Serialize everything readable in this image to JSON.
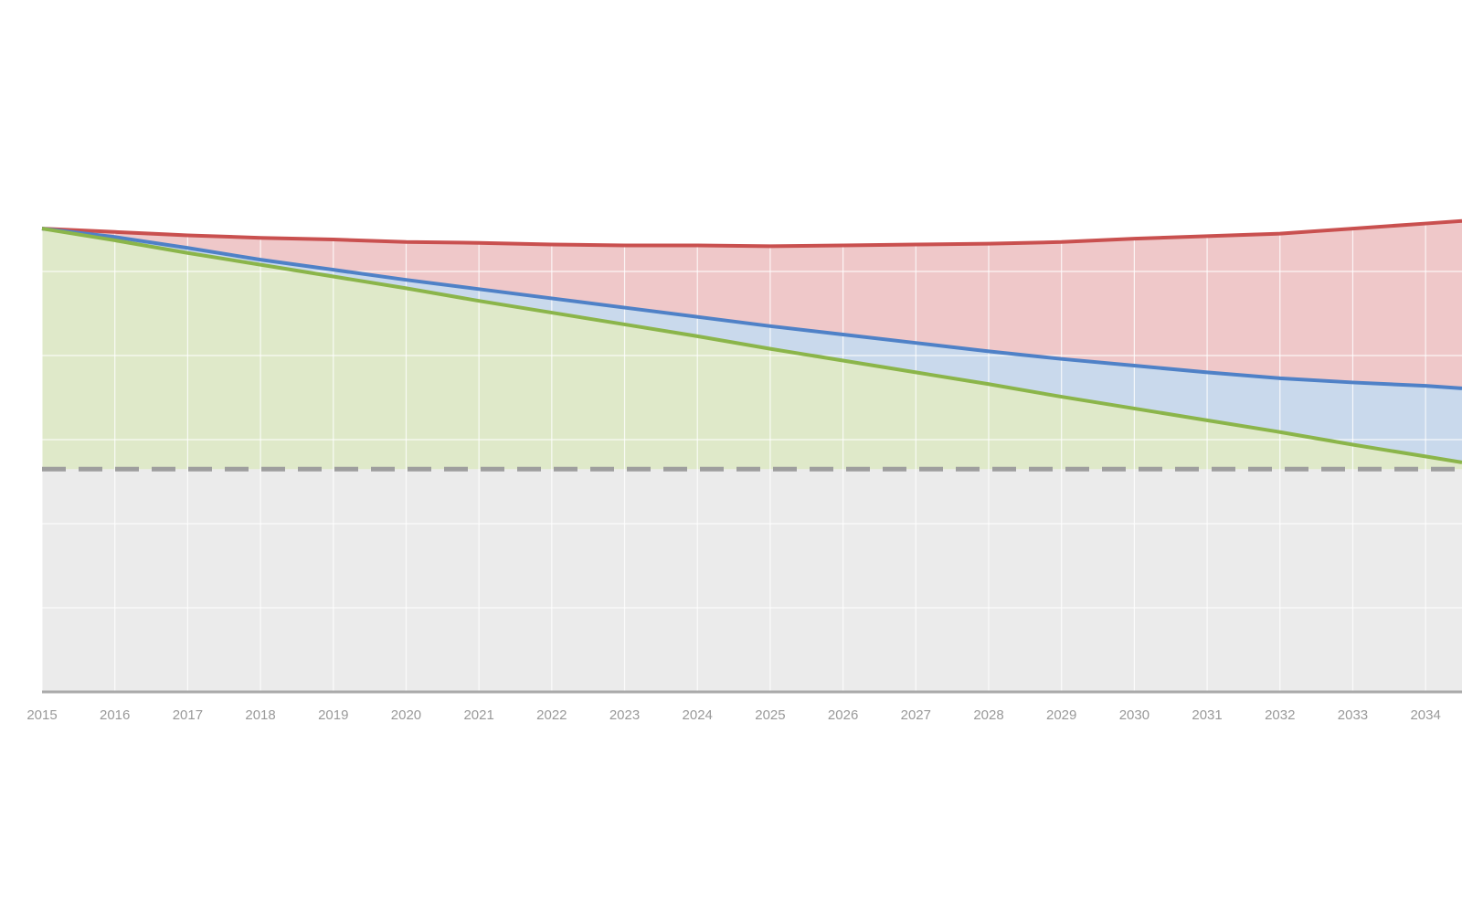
{
  "chart_data": {
    "type": "area",
    "x": [
      2015,
      2016,
      2017,
      2018,
      2019,
      2020,
      2021,
      2022,
      2023,
      2024,
      2025,
      2026,
      2027,
      2028,
      2029,
      2030,
      2031,
      2032,
      2033,
      2034,
      2034.5
    ],
    "series": [
      {
        "color": "#c9504f",
        "fill": "#efc8c9",
        "values": [
          5.51,
          5.47,
          5.43,
          5.4,
          5.38,
          5.35,
          5.34,
          5.32,
          5.31,
          5.31,
          5.3,
          5.31,
          5.32,
          5.33,
          5.35,
          5.39,
          5.42,
          5.45,
          5.51,
          5.57,
          5.6
        ]
      },
      {
        "color": "#4f81c7",
        "fill": "#c9d9ec",
        "values": [
          5.51,
          5.41,
          5.28,
          5.14,
          5.02,
          4.9,
          4.79,
          4.68,
          4.57,
          4.46,
          4.35,
          4.25,
          4.15,
          4.05,
          3.96,
          3.88,
          3.8,
          3.73,
          3.68,
          3.64,
          3.61
        ]
      },
      {
        "color": "#8bb54a",
        "fill": "#dfe9c9",
        "values": [
          5.51,
          5.37,
          5.22,
          5.08,
          4.94,
          4.8,
          4.65,
          4.51,
          4.37,
          4.23,
          4.08,
          3.94,
          3.8,
          3.66,
          3.51,
          3.37,
          3.23,
          3.09,
          2.94,
          2.8,
          2.73
        ]
      }
    ],
    "threshold": {
      "value": 2.65,
      "color": "#9e9e9e",
      "fill": "#ebebeb"
    },
    "xlim": [
      2015,
      2034.5
    ],
    "xticks": [
      2015,
      2016,
      2017,
      2018,
      2019,
      2020,
      2021,
      2022,
      2023,
      2024,
      2025,
      2026,
      2027,
      2028,
      2029,
      2030,
      2031,
      2032,
      2033,
      2034
    ],
    "ylim": [
      0,
      6
    ],
    "yticks": [
      1,
      2,
      3,
      4,
      5
    ],
    "grid": true
  }
}
